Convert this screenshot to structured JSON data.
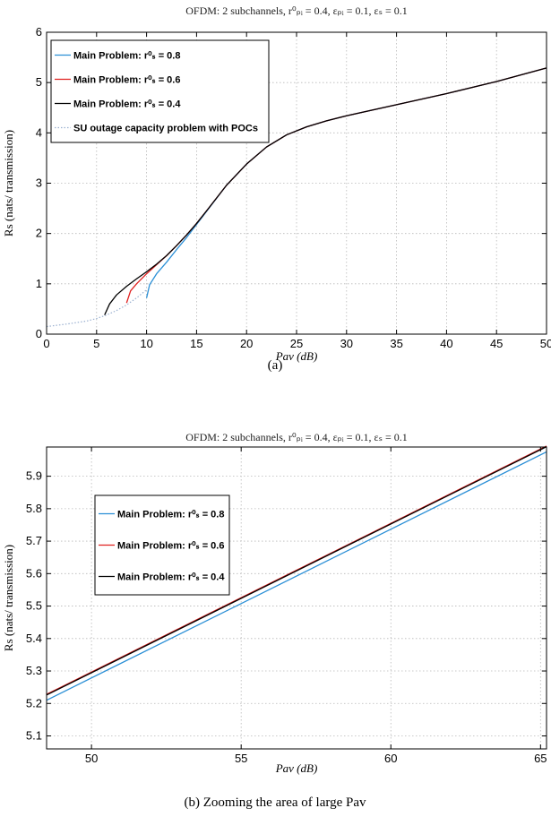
{
  "chart_data": [
    {
      "type": "line",
      "title": "OFDM: 2 subchannels, r⁰ₚᵢ = 0.4, εₚᵢ = 0.1, εₛ = 0.1",
      "xlabel": "Pav (dB)",
      "ylabel": "Rs (nats/ transmission)",
      "caption": "(a)",
      "xlim": [
        0,
        50
      ],
      "ylim": [
        0,
        6
      ],
      "xticks": [
        0,
        5,
        10,
        15,
        20,
        25,
        30,
        35,
        40,
        45,
        50
      ],
      "yticks": [
        0,
        1,
        2,
        3,
        4,
        5,
        6
      ],
      "grid": true,
      "legend_position": "top-left",
      "series": [
        {
          "name": "Main Problem: r⁰ₛ = 0.8",
          "color": "#2a8fd6",
          "x": [
            10,
            10.3,
            11,
            12,
            13,
            14,
            15,
            16,
            18,
            20,
            22,
            24,
            26,
            28,
            30,
            35,
            40,
            45,
            50
          ],
          "y": [
            0.72,
            0.98,
            1.2,
            1.43,
            1.68,
            1.92,
            2.18,
            2.44,
            2.96,
            3.38,
            3.72,
            3.96,
            4.12,
            4.24,
            4.34,
            4.56,
            4.78,
            5.02,
            5.29
          ]
        },
        {
          "name": "Main Problem: r⁰ₛ = 0.6",
          "color": "#e0201f",
          "x": [
            8,
            8.4,
            9,
            10,
            11,
            12,
            13,
            14,
            15,
            16,
            18,
            20,
            22,
            24,
            26,
            28,
            30,
            35,
            40,
            45,
            50
          ],
          "y": [
            0.62,
            0.86,
            1.0,
            1.2,
            1.38,
            1.56,
            1.76,
            1.97,
            2.2,
            2.45,
            2.96,
            3.38,
            3.72,
            3.96,
            4.12,
            4.24,
            4.34,
            4.56,
            4.78,
            5.02,
            5.29
          ]
        },
        {
          "name": "Main Problem: r⁰ₛ = 0.4",
          "color": "#000000",
          "x": [
            5.8,
            6.3,
            7,
            8,
            9,
            10,
            11,
            12,
            13,
            14,
            15,
            16,
            18,
            20,
            22,
            24,
            26,
            28,
            30,
            35,
            40,
            45,
            50
          ],
          "y": [
            0.38,
            0.6,
            0.78,
            0.95,
            1.1,
            1.24,
            1.39,
            1.56,
            1.76,
            1.97,
            2.2,
            2.45,
            2.96,
            3.38,
            3.72,
            3.96,
            4.12,
            4.24,
            4.34,
            4.56,
            4.78,
            5.02,
            5.29
          ]
        },
        {
          "name": "SU outage capacity problem with POCs",
          "color": "#9ab0d0",
          "dashed": true,
          "x": [
            0,
            2,
            4,
            5,
            6,
            7,
            8,
            9,
            10
          ],
          "y": [
            0.15,
            0.2,
            0.26,
            0.31,
            0.38,
            0.47,
            0.58,
            0.72,
            0.88
          ]
        }
      ]
    },
    {
      "type": "line",
      "title": "OFDM: 2 subchannels, r⁰ₚᵢ = 0.4, εₚᵢ = 0.1, εₛ = 0.1",
      "xlabel": "Pav (dB)",
      "ylabel": "Rs (nats/ transmission)",
      "caption": "(b) Zooming the area of large Pav",
      "xlim": [
        48.5,
        65.2
      ],
      "ylim": [
        5.06,
        5.99
      ],
      "xticks": [
        50,
        55,
        60,
        65
      ],
      "yticks": [
        5.1,
        5.2,
        5.3,
        5.4,
        5.5,
        5.6,
        5.7,
        5.8,
        5.9
      ],
      "grid": true,
      "legend_position": "top-left",
      "series": [
        {
          "name": "Main Problem: r⁰ₛ = 0.8",
          "color": "#2a8fd6",
          "x": [
            48.5,
            65.2
          ],
          "y": [
            5.21,
            5.975
          ]
        },
        {
          "name": "Main Problem: r⁰ₛ = 0.6",
          "color": "#e0201f",
          "x": [
            48.5,
            65.2
          ],
          "y": [
            5.228,
            5.993
          ]
        },
        {
          "name": "Main Problem: r⁰ₛ = 0.4",
          "color": "#000000",
          "x": [
            48.5,
            65.2
          ],
          "y": [
            5.226,
            5.991
          ]
        }
      ]
    }
  ]
}
